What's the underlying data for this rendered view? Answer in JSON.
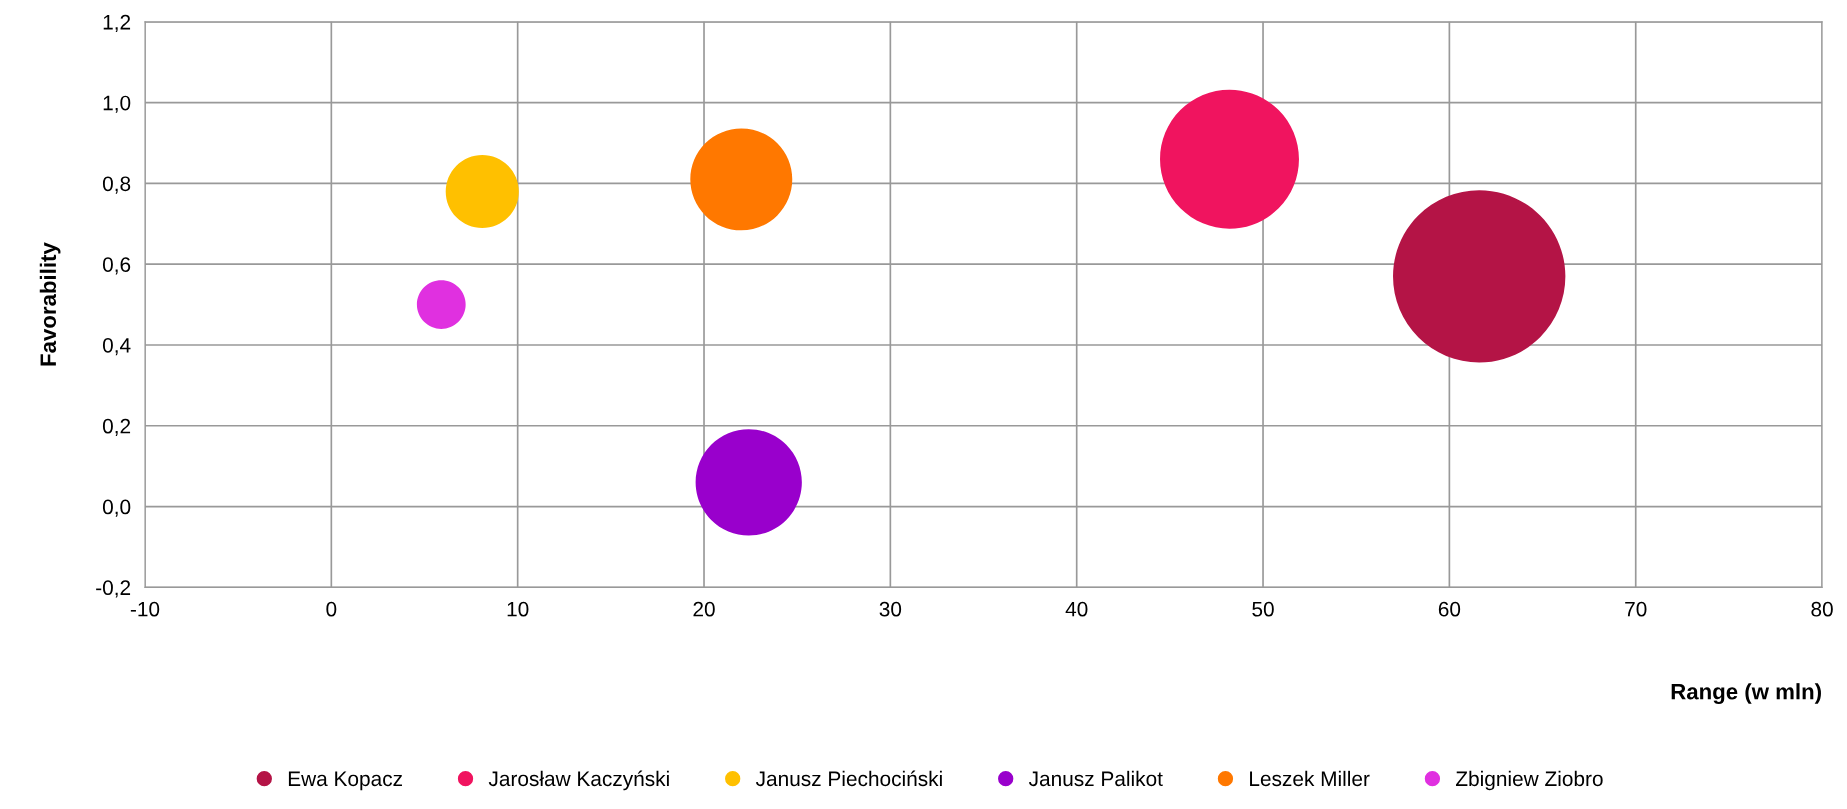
{
  "chart_data": {
    "type": "bubble",
    "xlabel": "Range (w mln)",
    "ylabel": "Favorability",
    "xlim": [
      -10,
      80
    ],
    "xticks": [
      -10,
      0,
      10,
      20,
      30,
      40,
      50,
      60,
      70,
      80
    ],
    "ylim": [
      -0.2,
      1.2
    ],
    "yticks": [
      {
        "value": -0.2,
        "label": "-0,2"
      },
      {
        "value": 0,
        "label": "0,0"
      },
      {
        "value": 0.2,
        "label": "0,2"
      },
      {
        "value": 0.4,
        "label": "0,4"
      },
      {
        "value": 0.6,
        "label": "0,6"
      },
      {
        "value": 0.8,
        "label": "0,8"
      },
      {
        "value": 1.0,
        "label": "1,0"
      },
      {
        "value": 1.2,
        "label": "1,2"
      }
    ],
    "grid": true,
    "legend": "bottom",
    "series": [
      {
        "name": "Ewa Kopacz",
        "color": "#b41446",
        "x": [
          61.6
        ],
        "values": [
          0.57
        ],
        "sizes": [
          1
        ]
      },
      {
        "name": "Jarosław Kaczyński",
        "color": "#f0145f",
        "x": [
          48.2
        ],
        "values": [
          0.86
        ],
        "sizes": [
          0.65
        ]
      },
      {
        "name": "Janusz Piechociński",
        "color": "#ffc000",
        "x": [
          8.1
        ],
        "values": [
          0.78
        ],
        "sizes": [
          0.18
        ]
      },
      {
        "name": "Janusz Palikot",
        "color": "#9900cc",
        "x": [
          22.4
        ],
        "values": [
          0.06
        ],
        "sizes": [
          0.38
        ]
      },
      {
        "name": "Leszek Miller",
        "color": "#ff7800",
        "x": [
          22.0
        ],
        "values": [
          0.81
        ],
        "sizes": [
          0.35
        ]
      },
      {
        "name": "Zbigniew Ziobro",
        "color": "#e030e0",
        "x": [
          5.9
        ],
        "values": [
          0.5
        ],
        "sizes": [
          0.08
        ]
      }
    ]
  }
}
